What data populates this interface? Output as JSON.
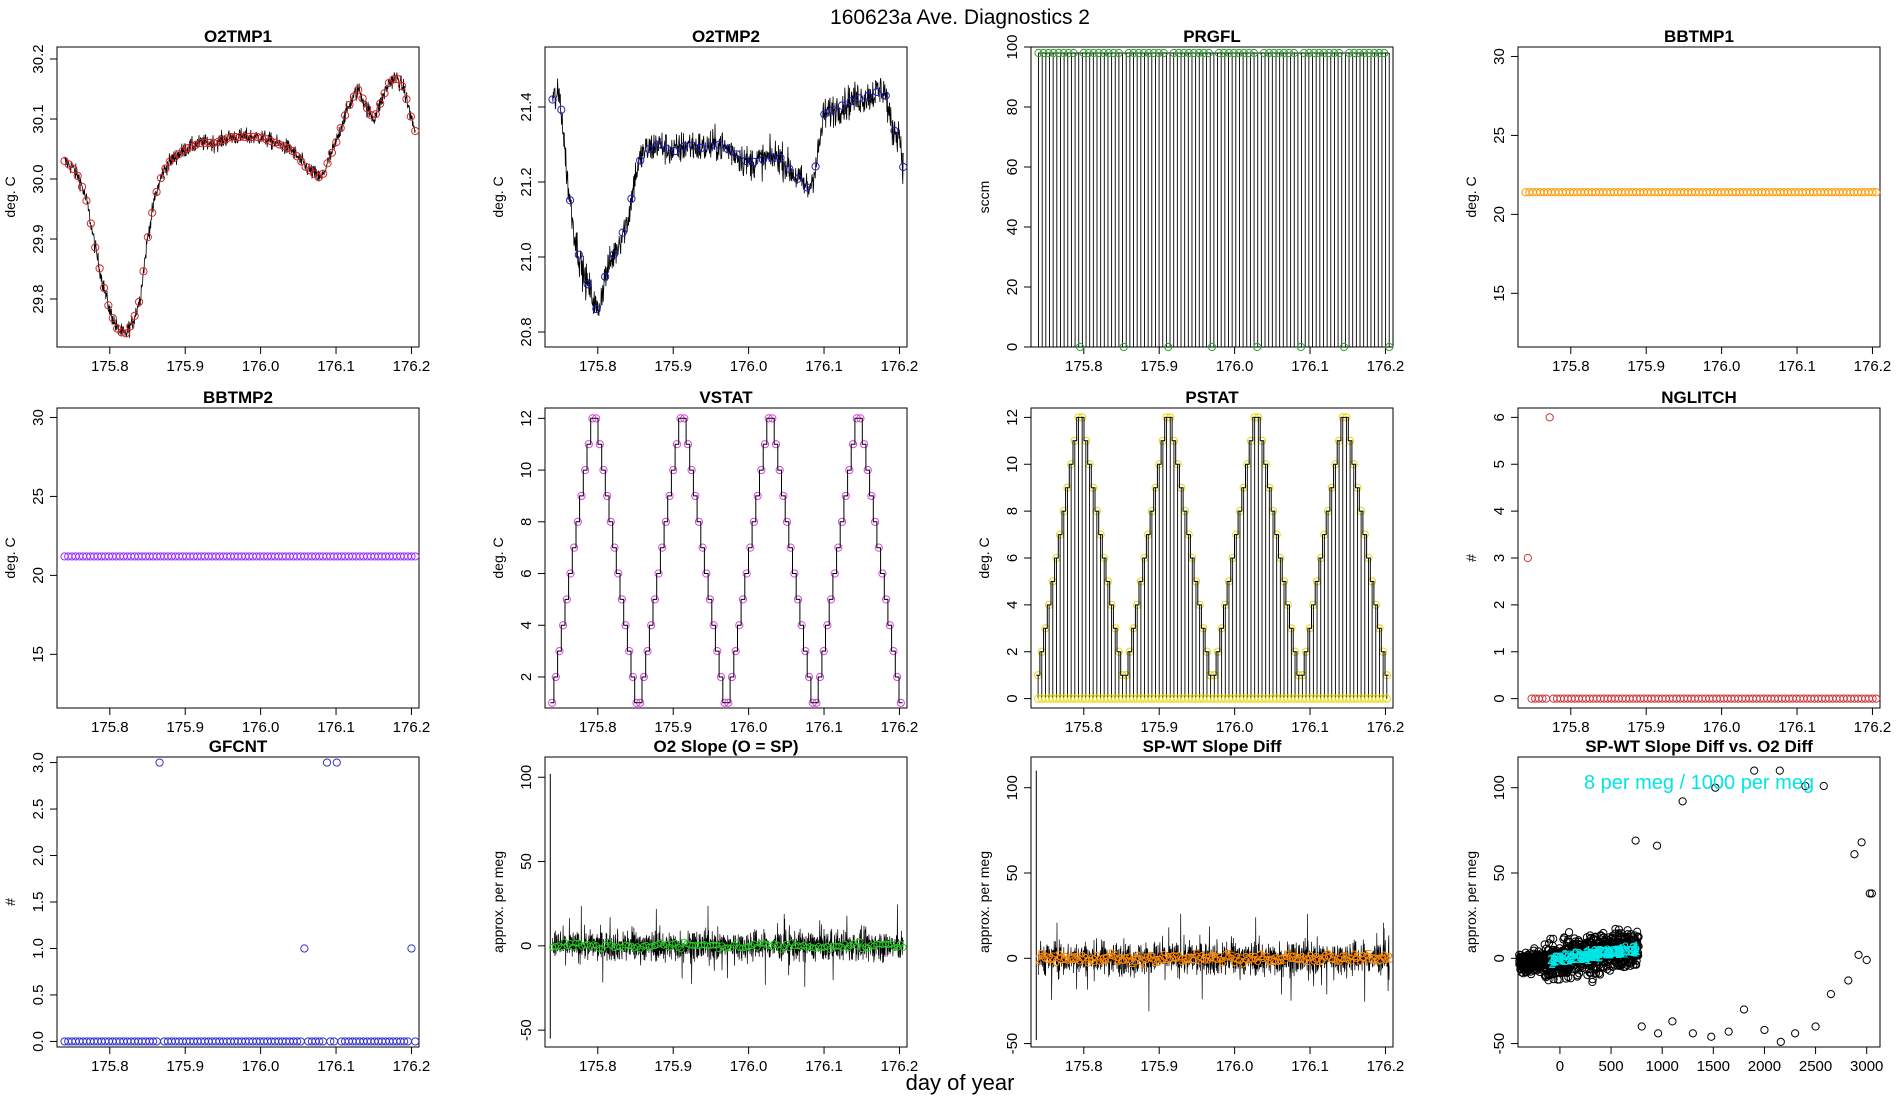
{
  "figure": {
    "title": "160623a   Ave. Diagnostics 2",
    "xlabel": "day of year"
  },
  "chart_data": [
    {
      "id": "o2tmp1",
      "type": "line",
      "title": "O2TMP1",
      "ylabel": "deg. C",
      "xlim": [
        175.73,
        176.21
      ],
      "ylim": [
        29.72,
        30.22
      ],
      "xticks": [
        175.8,
        175.9,
        176.0,
        176.1,
        176.2
      ],
      "xtick_labels": [
        "175.8",
        "175.9",
        "176.0",
        "176.1",
        "176.2"
      ],
      "yticks": [
        29.8,
        29.9,
        30.0,
        30.1,
        30.2
      ],
      "ytick_labels": [
        "29.8",
        "29.9",
        "30.0",
        "30.1",
        "30.2"
      ],
      "series": [
        {
          "name": "O2TMP1",
          "color": "#000000",
          "marker_color": "#d62728",
          "points": [
            [
              175.74,
              30.03
            ],
            [
              175.75,
              30.02
            ],
            [
              175.76,
              30.0
            ],
            [
              175.77,
              29.96
            ],
            [
              175.78,
              29.89
            ],
            [
              175.79,
              29.83
            ],
            [
              175.8,
              29.78
            ],
            [
              175.81,
              29.75
            ],
            [
              175.82,
              29.74
            ],
            [
              175.83,
              29.76
            ],
            [
              175.84,
              29.8
            ],
            [
              175.85,
              29.9
            ],
            [
              175.86,
              29.97
            ],
            [
              175.87,
              30.01
            ],
            [
              175.88,
              30.03
            ],
            [
              175.89,
              30.04
            ],
            [
              175.9,
              30.05
            ],
            [
              175.92,
              30.06
            ],
            [
              175.94,
              30.06
            ],
            [
              175.96,
              30.07
            ],
            [
              175.98,
              30.07
            ],
            [
              176.0,
              30.07
            ],
            [
              176.02,
              30.06
            ],
            [
              176.04,
              30.05
            ],
            [
              176.06,
              30.02
            ],
            [
              176.07,
              30.01
            ],
            [
              176.08,
              30.0
            ],
            [
              176.09,
              30.03
            ],
            [
              176.1,
              30.06
            ],
            [
              176.11,
              30.1
            ],
            [
              176.12,
              30.13
            ],
            [
              176.13,
              30.15
            ],
            [
              176.14,
              30.12
            ],
            [
              176.15,
              30.1
            ],
            [
              176.16,
              30.13
            ],
            [
              176.17,
              30.16
            ],
            [
              176.18,
              30.17
            ],
            [
              176.19,
              30.15
            ],
            [
              176.2,
              30.1
            ],
            [
              176.205,
              30.08
            ]
          ]
        }
      ]
    },
    {
      "id": "o2tmp2",
      "type": "line",
      "title": "O2TMP2",
      "ylabel": "deg. C",
      "xlim": [
        175.73,
        176.21
      ],
      "ylim": [
        20.76,
        21.56
      ],
      "xticks": [
        175.8,
        175.9,
        176.0,
        176.1,
        176.2
      ],
      "xtick_labels": [
        "175.8",
        "175.9",
        "176.0",
        "176.1",
        "176.2"
      ],
      "yticks": [
        20.8,
        21.0,
        21.2,
        21.4
      ],
      "ytick_labels": [
        "20.8",
        "21.0",
        "21.2",
        "21.4"
      ],
      "series": [
        {
          "name": "O2TMP2",
          "color": "#000000",
          "marker_color": "#1f1fcc",
          "points": [
            [
              175.74,
              21.42
            ],
            [
              175.75,
              21.43
            ],
            [
              175.76,
              21.2
            ],
            [
              175.77,
              21.05
            ],
            [
              175.78,
              20.96
            ],
            [
              175.79,
              20.91
            ],
            [
              175.8,
              20.85
            ],
            [
              175.81,
              20.95
            ],
            [
              175.82,
              21.0
            ],
            [
              175.83,
              21.05
            ],
            [
              175.84,
              21.1
            ],
            [
              175.85,
              21.22
            ],
            [
              175.86,
              21.28
            ],
            [
              175.88,
              21.3
            ],
            [
              175.9,
              21.28
            ],
            [
              175.92,
              21.3
            ],
            [
              175.94,
              21.29
            ],
            [
              175.96,
              21.3
            ],
            [
              175.98,
              21.28
            ],
            [
              176.0,
              21.25
            ],
            [
              176.02,
              21.26
            ],
            [
              176.04,
              21.27
            ],
            [
              176.06,
              21.22
            ],
            [
              176.08,
              21.18
            ],
            [
              176.09,
              21.25
            ],
            [
              176.1,
              21.38
            ],
            [
              176.12,
              21.4
            ],
            [
              176.14,
              21.42
            ],
            [
              176.16,
              21.43
            ],
            [
              176.18,
              21.45
            ],
            [
              176.19,
              21.34
            ],
            [
              176.2,
              21.33
            ],
            [
              176.205,
              21.24
            ]
          ]
        }
      ]
    },
    {
      "id": "prgfl",
      "type": "scatter",
      "title": "PRGFL",
      "ylabel": "sccm",
      "xlim": [
        175.73,
        176.21
      ],
      "ylim": [
        0,
        100
      ],
      "xticks": [
        175.8,
        175.9,
        176.0,
        176.1,
        176.2
      ],
      "xtick_labels": [
        "175.8",
        "175.9",
        "176.0",
        "176.1",
        "176.2"
      ],
      "yticks": [
        0,
        20,
        40,
        60,
        80,
        100
      ],
      "ytick_labels": [
        "0",
        "20",
        "40",
        "60",
        "80",
        "100"
      ],
      "series": [
        {
          "name": "PRGFL high",
          "value": 98,
          "marker_color": "#2ca02c"
        },
        {
          "name": "PRGFL low",
          "value": 0,
          "marker_color": "#2ca02c",
          "x_low": [
            175.795,
            175.853,
            175.912,
            175.97,
            176.03,
            176.088,
            176.145,
            176.205
          ]
        }
      ]
    },
    {
      "id": "bbtmp1",
      "type": "scatter",
      "title": "BBTMP1",
      "ylabel": "deg. C",
      "xlim": [
        175.73,
        176.21
      ],
      "ylim": [
        11.6,
        30.6
      ],
      "xticks": [
        175.8,
        175.9,
        176.0,
        176.1,
        176.2
      ],
      "xtick_labels": [
        "175.8",
        "175.9",
        "176.0",
        "176.1",
        "176.2"
      ],
      "yticks": [
        15,
        20,
        25,
        30
      ],
      "ytick_labels": [
        "15",
        "20",
        "25",
        "30"
      ],
      "series": [
        {
          "name": "BBTMP1",
          "value": 21.4,
          "marker_color": "#ff9900"
        }
      ]
    },
    {
      "id": "bbtmp2",
      "type": "scatter",
      "title": "BBTMP2",
      "ylabel": "deg. C",
      "xlim": [
        175.73,
        176.21
      ],
      "ylim": [
        11.6,
        30.6
      ],
      "xticks": [
        175.8,
        175.9,
        176.0,
        176.1,
        176.2
      ],
      "xtick_labels": [
        "175.8",
        "175.9",
        "176.0",
        "176.1",
        "176.2"
      ],
      "yticks": [
        15,
        20,
        25,
        30
      ],
      "ytick_labels": [
        "15",
        "20",
        "25",
        "30"
      ],
      "series": [
        {
          "name": "BBTMP2",
          "value": 21.2,
          "marker_color": "#9933ff"
        }
      ]
    },
    {
      "id": "vstat",
      "type": "line",
      "title": "VSTAT",
      "ylabel": "deg. C",
      "xlim": [
        175.73,
        176.21
      ],
      "ylim": [
        0.8,
        12.4
      ],
      "xticks": [
        175.8,
        175.9,
        176.0,
        176.1,
        176.2
      ],
      "xtick_labels": [
        "175.8",
        "175.9",
        "176.0",
        "176.1",
        "176.2"
      ],
      "yticks": [
        2,
        4,
        6,
        8,
        10,
        12
      ],
      "ytick_labels": [
        "2",
        "4",
        "6",
        "8",
        "10",
        "12"
      ],
      "series": [
        {
          "name": "VSTAT",
          "color": "#000000",
          "marker_color": "#dd44dd",
          "cycle_start": 175.737,
          "cycle_length": 0.1168,
          "cycles": 4,
          "low": 1,
          "high": 12
        }
      ]
    },
    {
      "id": "pstat",
      "type": "line",
      "title": "PSTAT",
      "ylabel": "deg. C",
      "xlim": [
        175.73,
        176.21
      ],
      "ylim": [
        -0.4,
        12.4
      ],
      "xticks": [
        175.8,
        175.9,
        176.0,
        176.1,
        176.2
      ],
      "xtick_labels": [
        "175.8",
        "175.9",
        "176.0",
        "176.1",
        "176.2"
      ],
      "yticks": [
        0,
        2,
        4,
        6,
        8,
        10,
        12
      ],
      "ytick_labels": [
        "0",
        "2",
        "4",
        "6",
        "8",
        "10",
        "12"
      ],
      "series": [
        {
          "name": "PSTAT",
          "color": "#000000",
          "marker_color": "#e6d800",
          "cycle_start": 175.737,
          "cycle_length": 0.1168,
          "cycles": 4,
          "low": 1,
          "high": 12
        }
      ]
    },
    {
      "id": "nglitch",
      "type": "scatter",
      "title": "NGLITCH",
      "ylabel": "#",
      "xlim": [
        175.73,
        176.21
      ],
      "ylim": [
        -0.2,
        6.2
      ],
      "xticks": [
        175.8,
        175.9,
        176.0,
        176.1,
        176.2
      ],
      "xtick_labels": [
        "175.8",
        "175.9",
        "176.0",
        "176.1",
        "176.2"
      ],
      "yticks": [
        0,
        1,
        2,
        3,
        4,
        5,
        6
      ],
      "ytick_labels": [
        "0",
        "1",
        "2",
        "3",
        "4",
        "5",
        "6"
      ],
      "series": [
        {
          "name": "NGLITCH",
          "marker_color": "#cc3333",
          "baseline": 0,
          "points": [
            [
              175.743,
              3
            ],
            [
              175.772,
              6
            ]
          ]
        }
      ]
    },
    {
      "id": "gfcnt",
      "type": "scatter",
      "title": "GFCNT",
      "ylabel": "#",
      "xlim": [
        175.73,
        176.21
      ],
      "ylim": [
        -0.06,
        3.06
      ],
      "xticks": [
        175.8,
        175.9,
        176.0,
        176.1,
        176.2
      ],
      "xtick_labels": [
        "175.8",
        "175.9",
        "176.0",
        "176.1",
        "176.2"
      ],
      "yticks": [
        0,
        0.5,
        1,
        1.5,
        2,
        2.5,
        3
      ],
      "ytick_labels": [
        "0.0",
        "0.5",
        "1.0",
        "1.5",
        "2.0",
        "2.5",
        "3.0"
      ],
      "series": [
        {
          "name": "GFCNT",
          "marker_color": "#3333cc",
          "baseline": 0,
          "points": [
            [
              175.866,
              3
            ],
            [
              176.058,
              1
            ],
            [
              176.088,
              3
            ],
            [
              176.101,
              3
            ],
            [
              176.2,
              1
            ]
          ]
        }
      ]
    },
    {
      "id": "o2slope",
      "type": "line",
      "title": "O2 Slope (O = SP)",
      "ylabel": "approx. per meg",
      "xlim": [
        175.73,
        176.21
      ],
      "ylim": [
        -60,
        112
      ],
      "xticks": [
        175.8,
        175.9,
        176.0,
        176.1,
        176.2
      ],
      "xtick_labels": [
        "175.8",
        "175.9",
        "176.0",
        "176.1",
        "176.2"
      ],
      "yticks": [
        -50,
        0,
        50,
        100
      ],
      "ytick_labels": [
        "-50",
        "0",
        "50",
        "100"
      ],
      "series": [
        {
          "name": "O2 slope",
          "color": "#000000",
          "marker_color": "#22cc22",
          "spike_x": 175.737,
          "spike_high": 102,
          "spike_low": -55,
          "noise": 10,
          "mean": 0,
          "marker_char": "o"
        }
      ]
    },
    {
      "id": "spwt",
      "type": "line",
      "title": "SP-WT Slope Diff",
      "ylabel": "approx. per meg",
      "xlim": [
        175.73,
        176.21
      ],
      "ylim": [
        -52,
        118
      ],
      "xticks": [
        175.8,
        175.9,
        176.0,
        176.1,
        176.2
      ],
      "xtick_labels": [
        "175.8",
        "175.9",
        "176.0",
        "176.1",
        "176.2"
      ],
      "yticks": [
        -50,
        0,
        50,
        100
      ],
      "ytick_labels": [
        "-50",
        "0",
        "50",
        "100"
      ],
      "series": [
        {
          "name": "SP-WT slope diff",
          "color": "#000000",
          "marker_color": "#ff8800",
          "spike_x": 175.737,
          "spike_high": 110,
          "spike_low": -48,
          "noise": 11,
          "mean": 0,
          "marker_chars": [
            "2",
            "5",
            "6",
            "8"
          ]
        }
      ]
    },
    {
      "id": "spwt_vs_o2",
      "type": "scatter",
      "title": "SP-WT Slope Diff vs. O2 Diff",
      "ylabel": "approx. per meg",
      "xlim": [
        -410,
        3130
      ],
      "ylim": [
        -52,
        118
      ],
      "xticks": [
        0,
        500,
        1000,
        1500,
        2000,
        2500,
        3000
      ],
      "xtick_labels": [
        "0",
        "500",
        "1000",
        "1500",
        "2000",
        "2500",
        "3000"
      ],
      "yticks": [
        -50,
        0,
        50,
        100
      ],
      "ytick_labels": [
        "-50",
        "0",
        "50",
        "100"
      ],
      "annotation": "8 per meg / 1000 per meg",
      "annotation_color": "#00e5e5",
      "series": [
        {
          "name": "outliers",
          "marker_color": "#000000",
          "points": [
            [
              740,
              69
            ],
            [
              950,
              66
            ],
            [
              800,
              -40
            ],
            [
              960,
              -44
            ],
            [
              1100,
              -37
            ],
            [
              1200,
              92
            ],
            [
              1300,
              -44
            ],
            [
              1480,
              -46
            ],
            [
              1520,
              100
            ],
            [
              1650,
              -43
            ],
            [
              1800,
              -30
            ],
            [
              1900,
              110
            ],
            [
              2000,
              -42
            ],
            [
              2150,
              110
            ],
            [
              2160,
              -49
            ],
            [
              2300,
              -44
            ],
            [
              2400,
              101
            ],
            [
              2500,
              -40
            ],
            [
              2580,
              101
            ],
            [
              2650,
              -21
            ],
            [
              2820,
              -13
            ],
            [
              2880,
              61
            ],
            [
              2920,
              2
            ],
            [
              2950,
              68
            ],
            [
              3000,
              -1
            ],
            [
              3030,
              38
            ],
            [
              3050,
              38
            ]
          ]
        },
        {
          "name": "cluster",
          "marker_color": "#000000",
          "x_range": [
            -400,
            770
          ],
          "noise": 9
        },
        {
          "name": "fit",
          "marker_color": "#00e5e5",
          "x_range": [
            -100,
            760
          ]
        }
      ]
    }
  ]
}
